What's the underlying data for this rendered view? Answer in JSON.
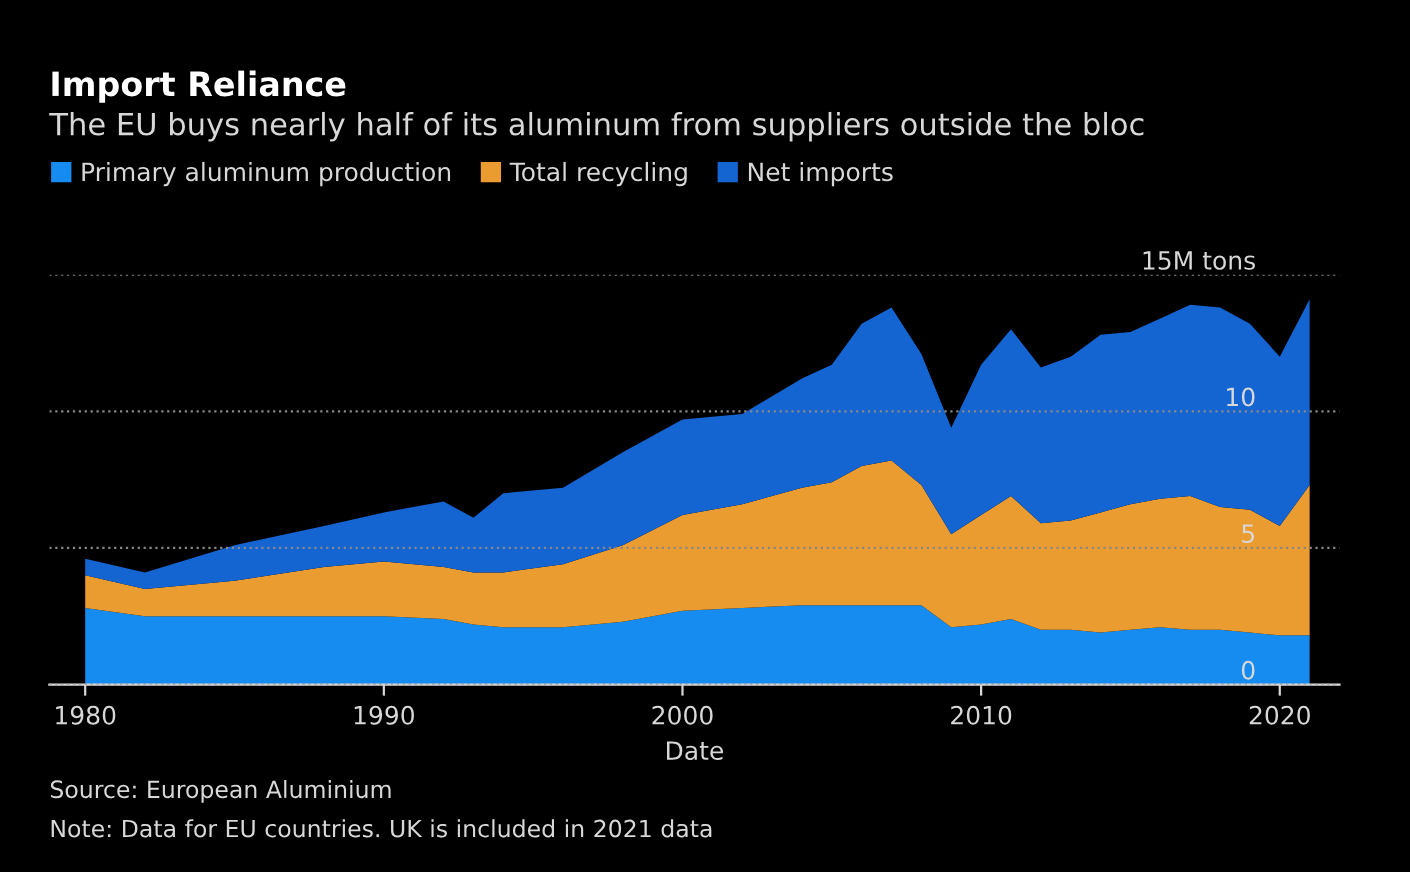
{
  "chart_data": {
    "type": "area",
    "stacked": true,
    "title": "Import Reliance",
    "subtitle": "The EU buys nearly half of its aluminum from suppliers outside the bloc",
    "xlabel": "Date",
    "x": [
      1980,
      1982,
      1985,
      1988,
      1990,
      1992,
      1993,
      1994,
      1996,
      1998,
      2000,
      2002,
      2004,
      2005,
      2006,
      2007,
      2008,
      2009,
      2010,
      2011,
      2012,
      2013,
      2014,
      2015,
      2016,
      2017,
      2018,
      2019,
      2020,
      2021
    ],
    "series": [
      {
        "name": "Primary aluminum production",
        "color": "#168cf0",
        "values": [
          2.8,
          2.5,
          2.5,
          2.5,
          2.5,
          2.4,
          2.2,
          2.1,
          2.1,
          2.3,
          2.7,
          2.8,
          2.9,
          2.9,
          2.9,
          2.9,
          2.9,
          2.1,
          2.2,
          2.4,
          2.0,
          2.0,
          1.9,
          2.0,
          2.1,
          2.0,
          2.0,
          1.9,
          1.8,
          1.8
        ]
      },
      {
        "name": "Total recycling",
        "color": "#eb9c30",
        "values": [
          1.2,
          1.0,
          1.3,
          1.8,
          2.0,
          1.9,
          1.9,
          2.0,
          2.3,
          2.8,
          3.5,
          3.8,
          4.3,
          4.5,
          5.1,
          5.3,
          4.4,
          3.4,
          4.0,
          4.5,
          3.9,
          4.0,
          4.4,
          4.6,
          4.7,
          4.9,
          4.5,
          4.5,
          4.0,
          5.5
        ]
      },
      {
        "name": "Net imports",
        "color": "#1464d2",
        "values": [
          0.6,
          0.6,
          1.3,
          1.5,
          1.8,
          2.4,
          2.0,
          2.9,
          2.8,
          3.4,
          3.5,
          3.3,
          4.0,
          4.3,
          5.2,
          5.6,
          4.8,
          3.9,
          5.5,
          6.1,
          5.7,
          6.0,
          6.5,
          6.3,
          6.6,
          7.0,
          7.3,
          6.8,
          6.2,
          6.8
        ]
      }
    ],
    "xlim": [
      1978.8,
      2022
    ],
    "xticks": [
      1980,
      1990,
      2000,
      2010,
      2020
    ],
    "ylim": [
      0,
      15
    ],
    "yticks": [
      0,
      5,
      10,
      {
        "value": 15,
        "label": "15M tons"
      }
    ],
    "grid": "y",
    "legend": "top left",
    "annotations": [
      "Source: European Aluminium",
      "Note: Data for EU countries. UK is included in 2021 data"
    ]
  }
}
